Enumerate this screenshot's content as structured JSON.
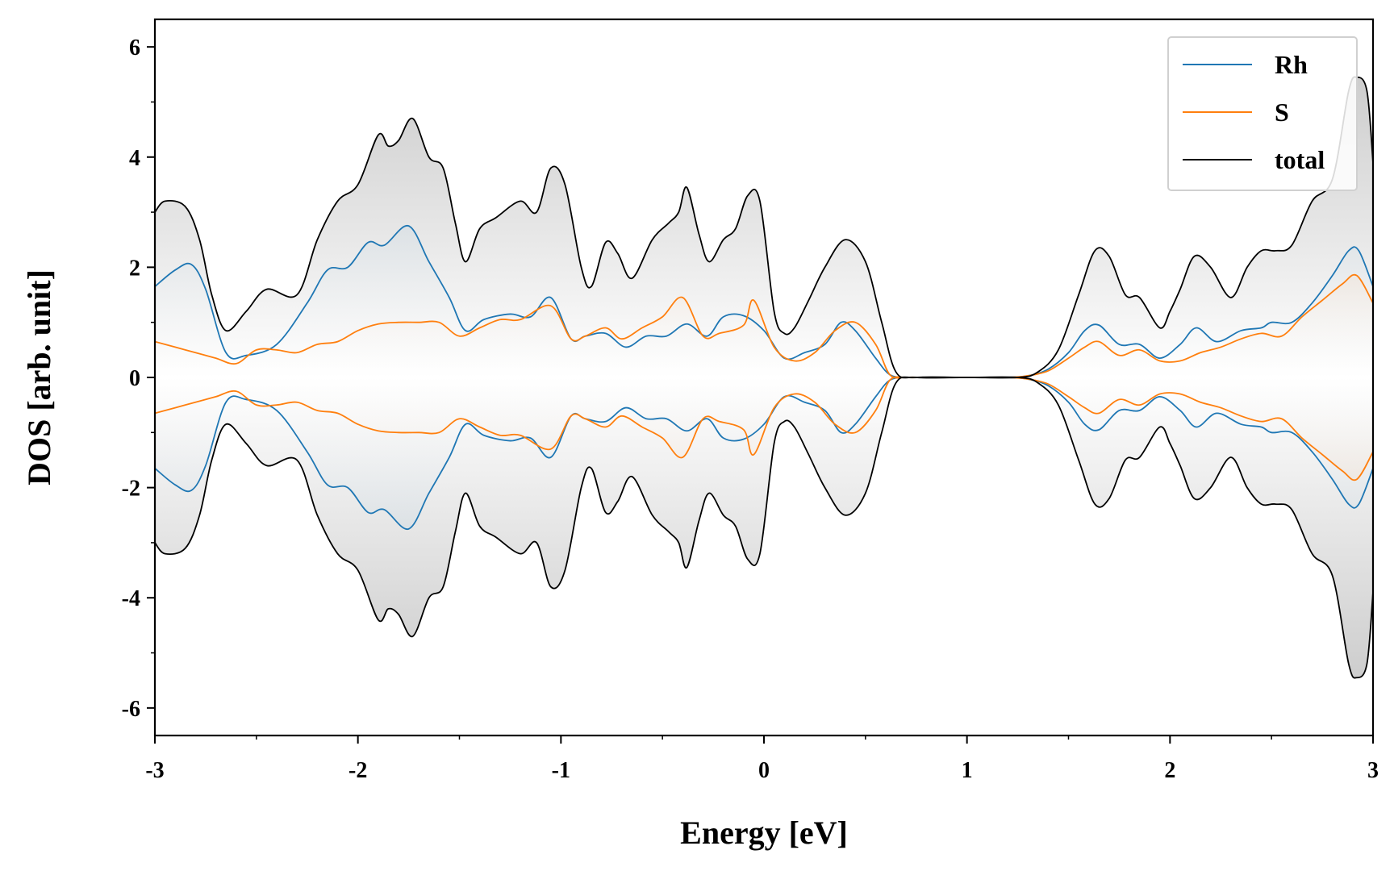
{
  "chart_data": {
    "type": "line",
    "xlabel": "Energy [eV]",
    "ylabel": "DOS [arb. unit]",
    "xlim": [
      -3,
      3
    ],
    "ylim": [
      -6.5,
      6.5
    ],
    "xticks": [
      -3,
      -2,
      -1,
      0,
      1,
      2,
      3
    ],
    "xtick_labels": [
      "-3",
      "-2",
      "-1",
      "0",
      "1",
      "2",
      "3"
    ],
    "yticks": [
      -6,
      -4,
      -2,
      0,
      2,
      4,
      6
    ],
    "ytick_labels": [
      "-6",
      "-4",
      "-2",
      "0",
      "2",
      "4",
      "6"
    ],
    "grid": false,
    "legend_position": "top-right",
    "mirrored": true,
    "series": [
      {
        "name": "Rh",
        "color": "#1f77b4",
        "x": [
          -3.0,
          -2.9,
          -2.82,
          -2.75,
          -2.65,
          -2.55,
          -2.4,
          -2.25,
          -2.15,
          -2.05,
          -1.95,
          -1.87,
          -1.75,
          -1.65,
          -1.55,
          -1.47,
          -1.38,
          -1.25,
          -1.15,
          -1.05,
          -0.95,
          -0.88,
          -0.78,
          -0.68,
          -0.58,
          -0.48,
          -0.38,
          -0.28,
          -0.2,
          -0.1,
          0.0,
          0.1,
          0.2,
          0.3,
          0.38,
          0.45,
          0.55,
          0.62,
          0.7,
          0.8,
          1.0,
          1.2,
          1.3,
          1.4,
          1.5,
          1.58,
          1.65,
          1.75,
          1.85,
          1.95,
          2.05,
          2.13,
          2.23,
          2.35,
          2.45,
          2.5,
          2.6,
          2.7,
          2.8,
          2.88,
          2.93,
          3.0
        ],
        "y": [
          1.65,
          1.95,
          2.05,
          1.6,
          0.45,
          0.4,
          0.6,
          1.35,
          1.95,
          2.0,
          2.45,
          2.4,
          2.75,
          2.1,
          1.45,
          0.85,
          1.05,
          1.15,
          1.1,
          1.45,
          0.7,
          0.75,
          0.8,
          0.55,
          0.75,
          0.75,
          0.97,
          0.75,
          1.1,
          1.12,
          0.85,
          0.35,
          0.45,
          0.6,
          1.0,
          0.85,
          0.35,
          0.05,
          0.0,
          0.0,
          0.0,
          0.0,
          0.03,
          0.15,
          0.45,
          0.85,
          0.95,
          0.6,
          0.6,
          0.35,
          0.6,
          0.9,
          0.65,
          0.85,
          0.9,
          1.0,
          1.0,
          1.35,
          1.85,
          2.3,
          2.3,
          1.65
        ]
      },
      {
        "name": "S",
        "color": "#ff7f0e",
        "x": [
          -3.0,
          -2.9,
          -2.8,
          -2.7,
          -2.6,
          -2.5,
          -2.4,
          -2.3,
          -2.2,
          -2.1,
          -2.0,
          -1.9,
          -1.8,
          -1.7,
          -1.6,
          -1.5,
          -1.4,
          -1.3,
          -1.2,
          -1.05,
          -0.95,
          -0.88,
          -0.78,
          -0.7,
          -0.6,
          -0.5,
          -0.4,
          -0.3,
          -0.22,
          -0.1,
          -0.05,
          0.05,
          0.15,
          0.25,
          0.35,
          0.45,
          0.55,
          0.62,
          0.7,
          0.8,
          1.0,
          1.2,
          1.3,
          1.4,
          1.5,
          1.58,
          1.65,
          1.75,
          1.85,
          1.95,
          2.05,
          2.15,
          2.25,
          2.35,
          2.45,
          2.55,
          2.65,
          2.75,
          2.85,
          2.92,
          3.0
        ],
        "y": [
          0.65,
          0.55,
          0.45,
          0.35,
          0.25,
          0.5,
          0.5,
          0.45,
          0.6,
          0.65,
          0.85,
          0.97,
          1.0,
          1.0,
          1.0,
          0.75,
          0.9,
          1.05,
          1.05,
          1.3,
          0.7,
          0.75,
          0.9,
          0.7,
          0.9,
          1.1,
          1.45,
          0.75,
          0.8,
          0.95,
          1.4,
          0.55,
          0.3,
          0.45,
          0.85,
          1.0,
          0.6,
          0.05,
          0.0,
          0.0,
          0.0,
          0.0,
          0.03,
          0.12,
          0.35,
          0.55,
          0.65,
          0.4,
          0.5,
          0.3,
          0.3,
          0.45,
          0.55,
          0.7,
          0.8,
          0.75,
          1.1,
          1.4,
          1.7,
          1.85,
          1.35
        ]
      },
      {
        "name": "total",
        "color": "#000000",
        "x": [
          -3.0,
          -2.95,
          -2.85,
          -2.78,
          -2.72,
          -2.65,
          -2.55,
          -2.45,
          -2.3,
          -2.2,
          -2.1,
          -2.0,
          -1.9,
          -1.85,
          -1.8,
          -1.73,
          -1.65,
          -1.58,
          -1.52,
          -1.47,
          -1.4,
          -1.32,
          -1.2,
          -1.12,
          -1.05,
          -0.98,
          -0.9,
          -0.85,
          -0.78,
          -0.72,
          -0.65,
          -0.55,
          -0.47,
          -0.42,
          -0.38,
          -0.32,
          -0.27,
          -0.2,
          -0.14,
          -0.08,
          -0.02,
          0.05,
          0.1,
          0.15,
          0.22,
          0.3,
          0.4,
          0.5,
          0.58,
          0.65,
          0.75,
          1.0,
          1.25,
          1.35,
          1.45,
          1.55,
          1.63,
          1.7,
          1.78,
          1.85,
          1.95,
          2.0,
          2.05,
          2.12,
          2.2,
          2.3,
          2.38,
          2.45,
          2.52,
          2.6,
          2.7,
          2.8,
          2.88,
          2.92,
          2.97,
          3.0
        ],
        "y": [
          3.0,
          3.2,
          3.1,
          2.5,
          1.5,
          0.85,
          1.2,
          1.6,
          1.5,
          2.5,
          3.2,
          3.5,
          4.4,
          4.2,
          4.3,
          4.7,
          4.0,
          3.8,
          2.8,
          2.1,
          2.7,
          2.9,
          3.2,
          3.0,
          3.8,
          3.5,
          2.0,
          1.65,
          2.45,
          2.25,
          1.8,
          2.5,
          2.8,
          3.0,
          3.45,
          2.6,
          2.1,
          2.5,
          2.7,
          3.3,
          3.2,
          1.2,
          0.8,
          0.9,
          1.4,
          2.0,
          2.5,
          2.1,
          1.0,
          0.1,
          0.0,
          0.0,
          0.0,
          0.1,
          0.5,
          1.5,
          2.3,
          2.2,
          1.5,
          1.45,
          0.9,
          1.2,
          1.6,
          2.2,
          2.0,
          1.45,
          2.0,
          2.3,
          2.3,
          2.4,
          3.2,
          3.6,
          5.2,
          5.45,
          5.2,
          3.9
        ]
      }
    ]
  },
  "legend": {
    "items": [
      {
        "label": "Rh",
        "color": "#1f77b4"
      },
      {
        "label": "S",
        "color": "#ff7f0e"
      },
      {
        "label": "total",
        "color": "#000000"
      }
    ]
  }
}
